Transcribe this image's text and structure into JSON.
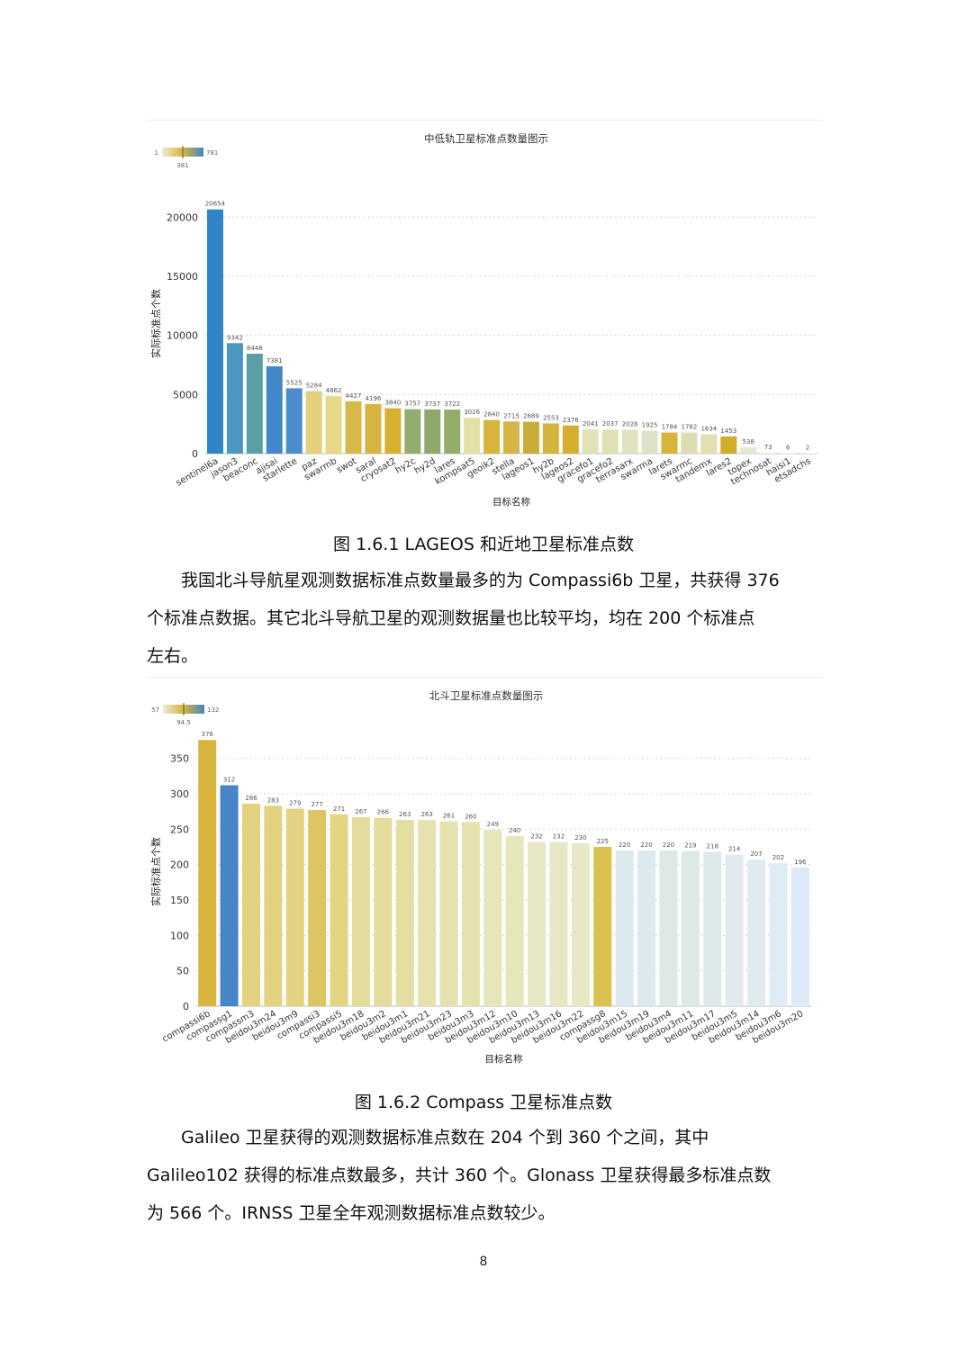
{
  "figure1": {
    "chart_data": {
      "type": "bar",
      "title": "中低轨卫星标准点数量图示",
      "xlabel": "目标名称",
      "ylabel": "实际标准点个数",
      "ylim": [
        0,
        22000
      ],
      "yticks": [
        0,
        5000,
        10000,
        15000,
        20000
      ],
      "grid": true,
      "legend": {
        "min_label": "1",
        "mid_label": "381",
        "max_label": "781",
        "placement": "top-left"
      },
      "categories": [
        "sentinel6a",
        "jason3",
        "beaconc",
        "ajisai",
        "starlette",
        "paz",
        "swarmb",
        "swot",
        "saral",
        "cryosat2",
        "hy2c",
        "hy2d",
        "lares",
        "kompsat5",
        "geoik2",
        "stella",
        "lageos1",
        "hy2b",
        "lageos2",
        "gracefo1",
        "gracefo2",
        "terrasarx",
        "swarma",
        "larets",
        "swarmc",
        "tandemx",
        "lares2",
        "topex",
        "technosat",
        "haisi1",
        "etsadchs"
      ],
      "values": [
        20654,
        9342,
        8448,
        7381,
        5525,
        5284,
        4862,
        4427,
        4196,
        3840,
        3757,
        3737,
        3722,
        3026,
        2840,
        2715,
        2689,
        2553,
        2376,
        2041,
        2037,
        2028,
        1925,
        1784,
        1782,
        1634,
        1453,
        538,
        73,
        6,
        2
      ],
      "bar_colors": [
        "#2f86c6",
        "#4a97c2",
        "#5a9ea6",
        "#4288c8",
        "#4a8ccc",
        "#e3d07a",
        "#e6d889",
        "#d9b84a",
        "#d8b442",
        "#d8b030",
        "#92ad6f",
        "#8fa96b",
        "#95ad6a",
        "#e4e0a8",
        "#d7b43a",
        "#d5b547",
        "#c9ad38",
        "#d4b43c",
        "#d5ae30",
        "#e1e2b6",
        "#dfe0b4",
        "#e1e3c0",
        "#dfe2c8",
        "#d7b43a",
        "#ddddb4",
        "#e2dfb2",
        "#d2ad2c",
        "#e4e8d6",
        "#f4f6f0",
        "#f8f8f6",
        "#f8f8f8"
      ]
    },
    "caption": "图 1.6.1 LAGEOS 和近地卫星标准点数"
  },
  "paragraph1": [
    "我国北斗导航星观测数据标准点数量最多的为 Compassi6b 卫星，共获得 376",
    "个标准点数据。其它北斗导航卫星的观测数据量也比较平均，均在 200 个标准点",
    "左右。"
  ],
  "figure2": {
    "chart_data": {
      "type": "bar",
      "title": "北斗卫星标准点数量图示",
      "xlabel": "目标名称",
      "ylabel": "实际标准点个数",
      "ylim": [
        0,
        380
      ],
      "yticks": [
        0,
        50,
        100,
        150,
        200,
        250,
        300,
        350
      ],
      "grid": true,
      "legend": {
        "min_label": "57",
        "mid_label": "94.5",
        "max_label": "132",
        "placement": "top-left"
      },
      "categories": [
        "compassi6b",
        "compassg1",
        "compassm3",
        "beidou3m24",
        "beidou3m9",
        "compassi3",
        "compassi5",
        "beidou3m18",
        "beidou3m2",
        "beidou3m1",
        "beidou3m21",
        "beidou3m23",
        "beidou3m3",
        "beidou3m12",
        "beidou3m10",
        "beidou3m13",
        "beidou3m16",
        "beidou3m22",
        "compassg8",
        "beidou3m15",
        "beidou3m19",
        "beidou3m4",
        "beidou3m11",
        "beidou3m17",
        "beidou3m5",
        "beidou3m14",
        "beidou3m6",
        "beidou3m20"
      ],
      "values": [
        376,
        312,
        286,
        283,
        279,
        277,
        271,
        267,
        266,
        263,
        263,
        261,
        260,
        249,
        240,
        232,
        232,
        230,
        225,
        220,
        220,
        220,
        219,
        218,
        214,
        207,
        202,
        196
      ],
      "bar_colors": [
        "#d8b53e",
        "#4686c8",
        "#e3d27f",
        "#e3d27f",
        "#e3d27f",
        "#dcc563",
        "#e3d583",
        "#e4dc9c",
        "#e4dc9c",
        "#e4dea2",
        "#e6e2ae",
        "#e6e2ae",
        "#e6e2ae",
        "#e6e6bb",
        "#e6e6bb",
        "#e8e8c4",
        "#e8e8c4",
        "#e8e8c4",
        "#dcc14e",
        "#dce9ef",
        "#dce9ef",
        "#dde8e8",
        "#dde8e8",
        "#dde8e8",
        "#e1ebef",
        "#e1ebef",
        "#e0ecf5",
        "#dde9f7"
      ]
    },
    "caption": "图 1.6.2 Compass 卫星标准点数"
  },
  "paragraph2": [
    "Galileo 卫星获得的观测数据标准点数在 204 个到 360 个之间，其中",
    "Galileo102 获得的标准点数最多，共计 360 个。Glonass 卫星获得最多标准点数",
    "为 566 个。IRNSS 卫星全年观测数据标准点数较少。"
  ],
  "page_number": "8"
}
